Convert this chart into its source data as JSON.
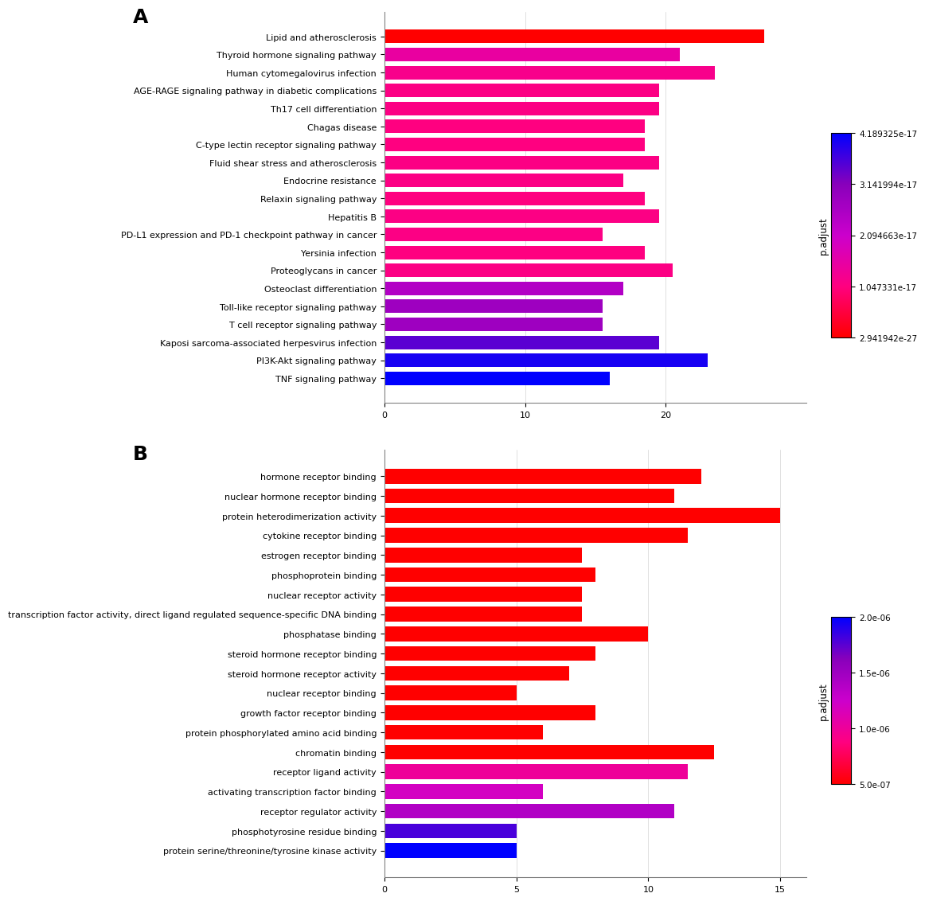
{
  "panel_A": {
    "categories": [
      "Lipid and atherosclerosis",
      "Thyroid hormone signaling pathway",
      "Human cytomegalovirus infection",
      "AGE-RAGE signaling pathway in diabetic complications",
      "Th17 cell differentiation",
      "Chagas disease",
      "C-type lectin receptor signaling pathway",
      "Fluid shear stress and atherosclerosis",
      "Endocrine resistance",
      "Relaxin signaling pathway",
      "Hepatitis B",
      "PD-L1 expression and PD-1 checkpoint pathway in cancer",
      "Yersinia infection",
      "Proteoglycans in cancer",
      "Osteoclast differentiation",
      "Toll-like receptor signaling pathway",
      "T cell receptor signaling pathway",
      "Kaposi sarcoma-associated herpesvirus infection",
      "PI3K-Akt signaling pathway",
      "TNF signaling pathway"
    ],
    "values": [
      27.0,
      21.0,
      23.5,
      19.5,
      19.5,
      18.5,
      18.5,
      19.5,
      17.0,
      18.5,
      19.5,
      15.5,
      18.5,
      20.5,
      17.0,
      15.5,
      15.5,
      19.5,
      23.0,
      16.0
    ],
    "p_adjust": [
      2.941942e-27,
      1.5e-17,
      1.2e-17,
      1.1e-17,
      1.1e-17,
      1.05e-17,
      1.05e-17,
      1.1e-17,
      1.1e-17,
      1.05e-17,
      1.1e-17,
      1.1e-17,
      1.05e-17,
      1.1e-17,
      2.5e-17,
      2.8e-17,
      2.8e-17,
      3.5e-17,
      4e-17,
      4.189325e-17
    ],
    "xlim": [
      0,
      30
    ],
    "xticks": [
      0,
      10,
      20
    ],
    "colorbar_min": 2.941942e-27,
    "colorbar_max": 4.189325e-17,
    "colorbar_ticks": [
      "2.941942e-27",
      "1.047331e-17",
      "2.094663e-17",
      "3.141994e-17",
      "4.189325e-17"
    ],
    "colorbar_tick_vals": [
      2.941942e-27,
      1.047331e-17,
      2.094663e-17,
      3.141994e-17,
      4.189325e-17
    ]
  },
  "panel_B": {
    "categories": [
      "hormone receptor binding",
      "nuclear hormone receptor binding",
      "protein heterodimerization activity",
      "cytokine receptor binding",
      "estrogen receptor binding",
      "phosphoprotein binding",
      "nuclear receptor activity",
      "transcription factor activity, direct ligand regulated sequence-specific DNA binding",
      "phosphatase binding",
      "steroid hormone receptor binding",
      "steroid hormone receptor activity",
      "nuclear receptor binding",
      "growth factor receptor binding",
      "protein phosphorylated amino acid binding",
      "chromatin binding",
      "receptor ligand activity",
      "activating transcription factor binding",
      "receptor regulator activity",
      "phosphotyrosine residue binding",
      "protein serine/threonine/tyrosine kinase activity"
    ],
    "values": [
      12.0,
      11.0,
      15.0,
      11.5,
      7.5,
      8.0,
      7.5,
      7.5,
      10.0,
      8.0,
      7.0,
      5.0,
      8.0,
      6.0,
      12.5,
      11.5,
      6.0,
      11.0,
      5.0,
      5.0
    ],
    "p_adjust": [
      2e-07,
      2e-07,
      2e-07,
      2e-07,
      2e-07,
      2e-07,
      2e-07,
      2e-07,
      2e-07,
      2e-07,
      2e-07,
      2e-07,
      2e-07,
      2e-07,
      2e-07,
      1e-06,
      1.2e-06,
      1.4e-06,
      1.8e-06,
      2e-06
    ],
    "xlim": [
      0,
      16
    ],
    "xticks": [
      0,
      5,
      10,
      15
    ],
    "colorbar_min": 5e-07,
    "colorbar_max": 2e-06,
    "colorbar_ticks": [
      "5.0e-07",
      "1.0e-06",
      "1.5e-06",
      "2.0e-06"
    ],
    "colorbar_tick_vals": [
      5e-07,
      1e-06,
      1.5e-06,
      2e-06
    ]
  },
  "label_fontsize": 8,
  "tick_fontsize": 8,
  "colorbar_fontsize": 7.5,
  "background_color": "#ffffff"
}
